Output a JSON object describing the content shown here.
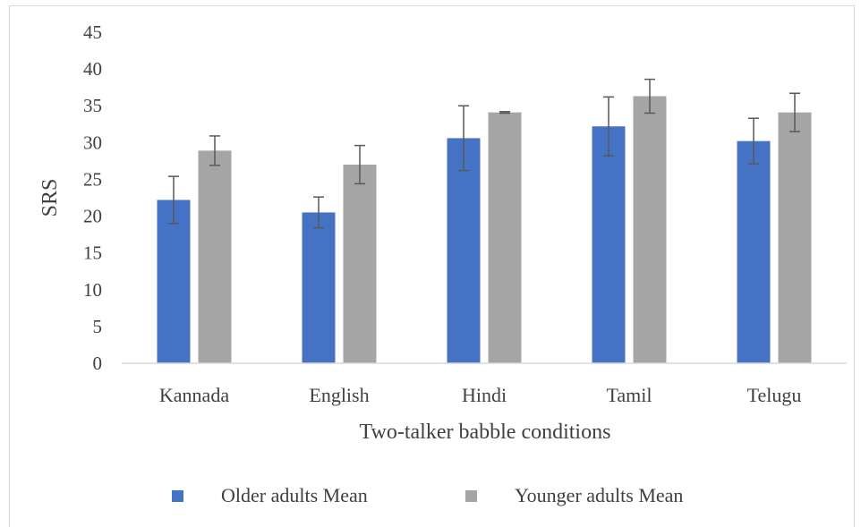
{
  "chart_data": {
    "type": "bar",
    "title": "",
    "xlabel": "Two-talker babble conditions",
    "ylabel": "SRS",
    "ylim": [
      0,
      45
    ],
    "ytick_step": 5,
    "yticks": [
      "0",
      "5",
      "10",
      "15",
      "20",
      "25",
      "30",
      "35",
      "40",
      "45"
    ],
    "categories": [
      "Kannada",
      "English",
      "Hindi",
      "Tamil",
      "Telugu"
    ],
    "grid": false,
    "legend_position": "bottom",
    "error_bars": true,
    "series": [
      {
        "name": "Older adults Mean",
        "color": "#4472c4",
        "values": [
          22.2,
          20.5,
          30.6,
          32.2,
          30.2
        ],
        "errors": [
          3.2,
          2.1,
          4.4,
          4.0,
          3.1
        ]
      },
      {
        "name": "Younger adults Mean",
        "color": "#a5a5a5",
        "values": [
          28.9,
          27.0,
          34.1,
          36.3,
          34.1
        ],
        "errors": [
          2.0,
          2.6,
          0.1,
          2.3,
          2.6
        ]
      }
    ]
  }
}
